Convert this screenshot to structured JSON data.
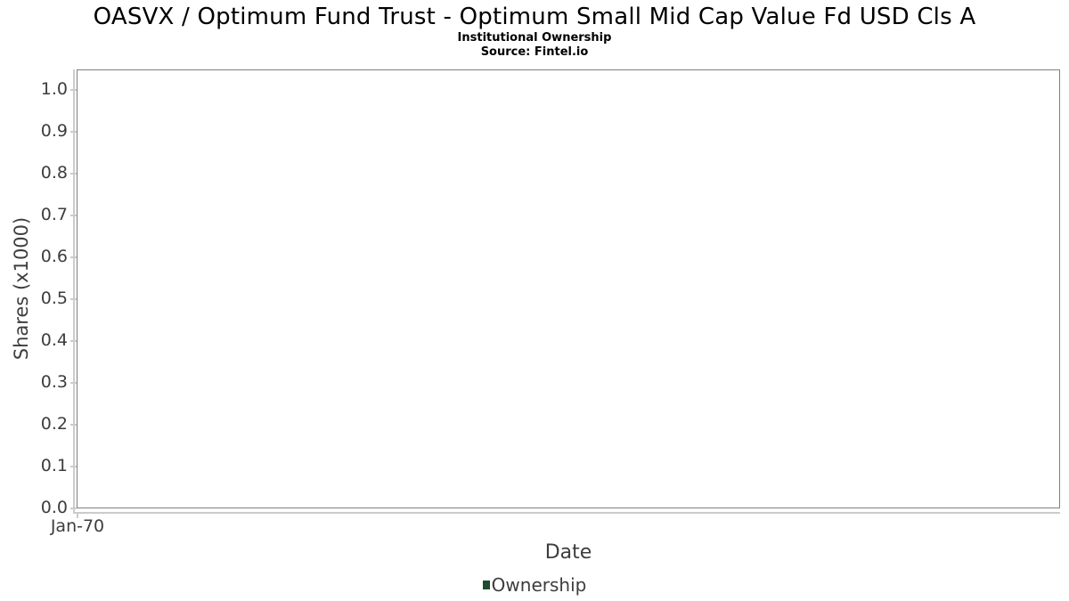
{
  "chart_data": {
    "type": "line",
    "title": "OASVX / Optimum Fund Trust - Optimum Small Mid Cap Value Fd USD Cls A",
    "subtitle": "Institutional Ownership",
    "source": "Source: Fintel.io",
    "xlabel": "Date",
    "ylabel": "Shares (x1000)",
    "x_tick_labels": [
      "Jan-70"
    ],
    "y_tick_labels": [
      "0.0",
      "0.1",
      "0.2",
      "0.3",
      "0.4",
      "0.5",
      "0.6",
      "0.7",
      "0.8",
      "0.9",
      "1.0"
    ],
    "ylim": [
      0.0,
      1.05
    ],
    "grid": true,
    "legend_position": "bottom",
    "series": [
      {
        "name": "Ownership",
        "color": "#1e4d2d",
        "x": [],
        "values": []
      }
    ],
    "colors": {
      "plot_border": "#7f7f7f",
      "gridline": "#e9e9e9",
      "axis_line": "#cbcbcb",
      "tick_text": "#3d3d3d",
      "title_text": "#000000",
      "legend_swatch": "#1e4d2d"
    }
  }
}
